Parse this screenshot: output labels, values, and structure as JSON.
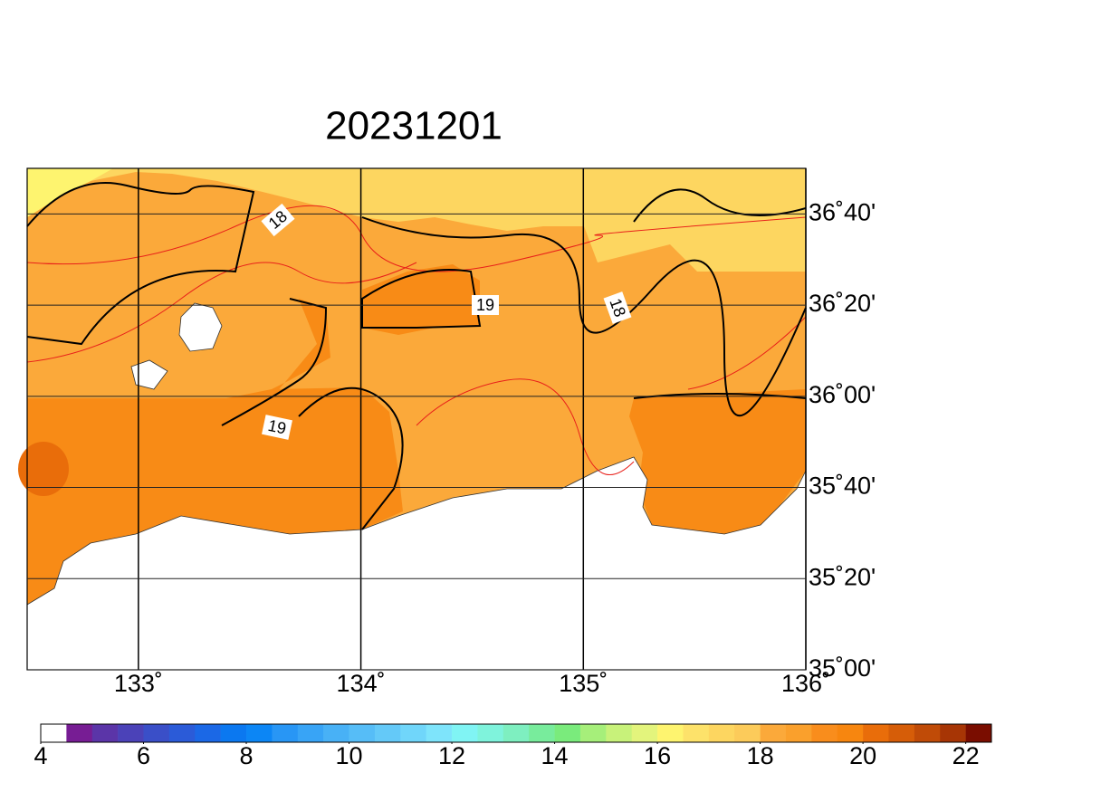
{
  "map": {
    "title": "20231201",
    "lon_range": [
      132.5,
      136
    ],
    "lat_range": [
      35,
      36.8333
    ],
    "lon_ticks": [
      {
        "value": 133,
        "label": "133˚"
      },
      {
        "value": 134,
        "label": "134˚"
      },
      {
        "value": 135,
        "label": "135˚"
      },
      {
        "value": 136,
        "label": "136˚"
      }
    ],
    "lat_ticks": [
      {
        "value": 36.6667,
        "label": "36˚40'"
      },
      {
        "value": 36.3333,
        "label": "36˚20'"
      },
      {
        "value": 36,
        "label": "36˚00'"
      },
      {
        "value": 35.6667,
        "label": "35˚40'"
      },
      {
        "value": 35.3333,
        "label": "35˚20'"
      },
      {
        "value": 35,
        "label": "35˚00'"
      }
    ],
    "contour_labels": [
      "18",
      "19",
      "19",
      "18"
    ],
    "colorbar": {
      "range": [
        4,
        22.5
      ],
      "ticks": [
        4,
        6,
        8,
        10,
        12,
        14,
        16,
        18,
        20,
        22
      ],
      "colors": [
        "#ffffff",
        "#771d94",
        "#5b35a8",
        "#4b42b8",
        "#3a4fc8",
        "#2b5bd8",
        "#1b68e6",
        "#0b78f0",
        "#0c86f5",
        "#2896f5",
        "#38a4f6",
        "#48b1f6",
        "#56bdf7",
        "#64c9f8",
        "#70d6fa",
        "#7ee4fb",
        "#80f4f4",
        "#7ff3dc",
        "#7eefc0",
        "#78ec9c",
        "#7aeb7c",
        "#a6ef7a",
        "#c8f27a",
        "#e3f47c",
        "#fef46f",
        "#fde26a",
        "#fdd660",
        "#fccb5a",
        "#fba93a",
        "#faa02c",
        "#f98d1c",
        "#f7860f",
        "#e96d0a",
        "#d65d08",
        "#c04b07",
        "#a73505",
        "#7a0d00"
      ]
    }
  }
}
